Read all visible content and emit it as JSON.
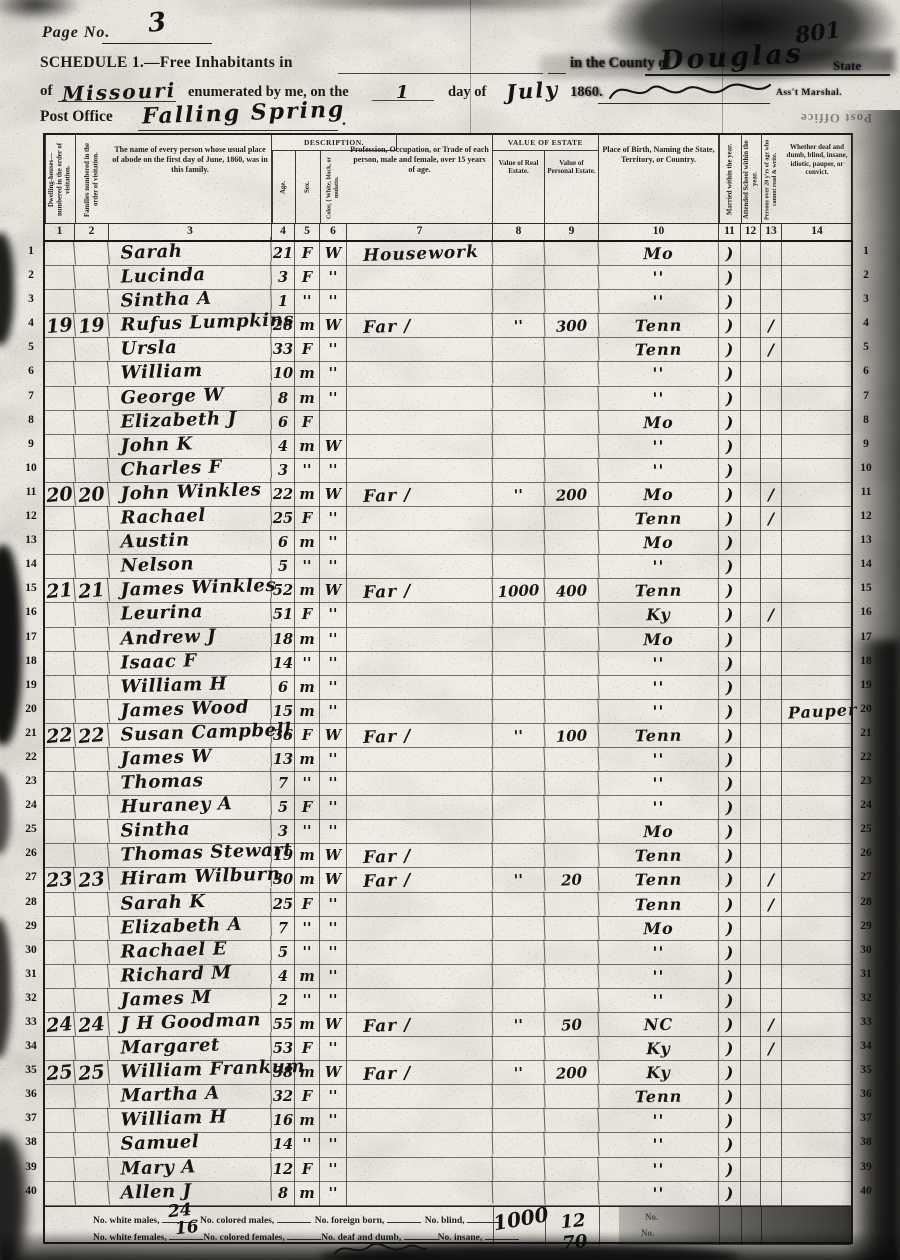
{
  "page": {
    "label": "Page No.",
    "number": "3",
    "corner_number": "801"
  },
  "header": {
    "schedule_title": "SCHEDULE 1.—Free Inhabitants in",
    "county_label": "in the County of",
    "county": "Douglas",
    "state_label": "State",
    "of_word": "of",
    "state": "Missouri",
    "enumerated": "enumerated by me, on the",
    "day": "1",
    "day_of": "day of",
    "month": "July",
    "year": "1860.",
    "marshal": "Ass't Marshal.",
    "post_office_label": "Post Office",
    "post_office": "Falling Spring",
    "period": ".",
    "bleedthrough": "Post Office"
  },
  "table": {
    "line_count": 40,
    "groups": {
      "description": "DESCRIPTION.",
      "estate": "VALUE OF ESTATE OWNED."
    },
    "columns": [
      {
        "no": "1",
        "label": "Dwelling-houses—numbered in the order of visitation."
      },
      {
        "no": "2",
        "label": "Families numbered in the order of visitation."
      },
      {
        "no": "3",
        "label": "The name of every person whose usual place of abode on the first day of June, 1860, was in this family."
      },
      {
        "no": "4",
        "label": "Age."
      },
      {
        "no": "5",
        "label": "Sex."
      },
      {
        "no": "6",
        "label": "Color, { White, black, or mulatto."
      },
      {
        "no": "7",
        "label": "Profession, Occupation, or Trade of each person, male and female, over 15 years of age."
      },
      {
        "no": "8",
        "label": "Value of Real Estate."
      },
      {
        "no": "9",
        "label": "Value of Personal Estate."
      },
      {
        "no": "10",
        "label": "Place of Birth, Naming the State, Territory, or Country."
      },
      {
        "no": "11",
        "label": "Married within the year."
      },
      {
        "no": "12",
        "label": "Attended School within the year."
      },
      {
        "no": "13",
        "label": "Persons over 20 y'rs of age who cannot read & write."
      },
      {
        "no": "14",
        "label": "Whether deaf and dumb, blind, insane, idiotic, pauper, or convict."
      }
    ],
    "rows": [
      [
        "",
        "",
        "Sarah",
        "21",
        "F",
        "W",
        "Housework",
        "",
        "",
        "Mo",
        ")",
        "",
        "",
        ""
      ],
      [
        "",
        "",
        "Lucinda",
        "3",
        "F",
        "''",
        "",
        "",
        "",
        "''",
        ")",
        "",
        "",
        ""
      ],
      [
        "",
        "",
        "Sintha A",
        "1",
        "''",
        "''",
        "",
        "",
        "",
        "''",
        ")",
        "",
        "",
        ""
      ],
      [
        "19",
        "19",
        "Rufus Lumpkins",
        "28",
        "m",
        "W",
        "Far /",
        "''",
        "300",
        "Tenn",
        ")",
        "",
        "/",
        ""
      ],
      [
        "",
        "",
        "Ursla",
        "33",
        "F",
        "''",
        "",
        "",
        "",
        "Tenn",
        ")",
        "",
        "/",
        ""
      ],
      [
        "",
        "",
        "William",
        "10",
        "m",
        "''",
        "",
        "",
        "",
        "''",
        ")",
        "",
        "",
        ""
      ],
      [
        "",
        "",
        "George W",
        "8",
        "m",
        "''",
        "",
        "",
        "",
        "''",
        ")",
        "",
        "",
        ""
      ],
      [
        "",
        "",
        "Elizabeth J",
        "6",
        "F",
        "",
        "",
        "",
        "",
        "Mo",
        ")",
        "",
        "",
        ""
      ],
      [
        "",
        "",
        "John K",
        "4",
        "m",
        "W",
        "",
        "",
        "",
        "''",
        ")",
        "",
        "",
        ""
      ],
      [
        "",
        "",
        "Charles F",
        "3",
        "''",
        "''",
        "",
        "",
        "",
        "''",
        ")",
        "",
        "",
        ""
      ],
      [
        "20",
        "20",
        "John Winkles",
        "22",
        "m",
        "W",
        "Far /",
        "''",
        "200",
        "Mo",
        ")",
        "",
        "/",
        ""
      ],
      [
        "",
        "",
        "Rachael",
        "25",
        "F",
        "''",
        "",
        "",
        "",
        "Tenn",
        ")",
        "",
        "/",
        ""
      ],
      [
        "",
        "",
        "Austin",
        "6",
        "m",
        "''",
        "",
        "",
        "",
        "Mo",
        ")",
        "",
        "",
        ""
      ],
      [
        "",
        "",
        "Nelson",
        "5",
        "''",
        "''",
        "",
        "",
        "",
        "''",
        ")",
        "",
        "",
        ""
      ],
      [
        "21",
        "21",
        "James Winkles",
        "52",
        "m",
        "W",
        "Far /",
        "1000",
        "400",
        "Tenn",
        ")",
        "",
        "",
        ""
      ],
      [
        "",
        "",
        "Leurina",
        "51",
        "F",
        "''",
        "",
        "",
        "",
        "Ky",
        ")",
        "",
        "/",
        ""
      ],
      [
        "",
        "",
        "Andrew J",
        "18",
        "m",
        "''",
        "",
        "",
        "",
        "Mo",
        ")",
        "",
        "",
        ""
      ],
      [
        "",
        "",
        "Isaac F",
        "14",
        "''",
        "''",
        "",
        "",
        "",
        "''",
        ")",
        "",
        "",
        ""
      ],
      [
        "",
        "",
        "William H",
        "6",
        "m",
        "''",
        "",
        "",
        "",
        "''",
        ")",
        "",
        "",
        ""
      ],
      [
        "",
        "",
        "James Wood",
        "15",
        "m",
        "''",
        "",
        "",
        "",
        "''",
        ")",
        "",
        "",
        "Pauper"
      ],
      [
        "22",
        "22",
        "Susan Campbell",
        "36",
        "F",
        "W",
        "Far /",
        "''",
        "100",
        "Tenn",
        ")",
        "",
        "",
        ""
      ],
      [
        "",
        "",
        "James W",
        "13",
        "m",
        "''",
        "",
        "",
        "",
        "''",
        ")",
        "",
        "",
        ""
      ],
      [
        "",
        "",
        "Thomas",
        "7",
        "''",
        "''",
        "",
        "",
        "",
        "''",
        ")",
        "",
        "",
        ""
      ],
      [
        "",
        "",
        "Huraney A",
        "5",
        "F",
        "''",
        "",
        "",
        "",
        "''",
        ")",
        "",
        "",
        ""
      ],
      [
        "",
        "",
        "Sintha",
        "3",
        "''",
        "''",
        "",
        "",
        "",
        "Mo",
        ")",
        "",
        "",
        ""
      ],
      [
        "",
        "",
        "Thomas Stewart",
        "19",
        "m",
        "W",
        "Far /",
        "",
        "",
        "Tenn",
        ")",
        "",
        "",
        ""
      ],
      [
        "23",
        "23",
        "Hiram Wilburn",
        "30",
        "m",
        "W",
        "Far /",
        "''",
        "20",
        "Tenn",
        ")",
        "",
        "/",
        ""
      ],
      [
        "",
        "",
        "Sarah K",
        "25",
        "F",
        "''",
        "",
        "",
        "",
        "Tenn",
        ")",
        "",
        "/",
        ""
      ],
      [
        "",
        "",
        "Elizabeth A",
        "7",
        "''",
        "''",
        "",
        "",
        "",
        "Mo",
        ")",
        "",
        "",
        ""
      ],
      [
        "",
        "",
        "Rachael E",
        "5",
        "''",
        "''",
        "",
        "",
        "",
        "''",
        ")",
        "",
        "",
        ""
      ],
      [
        "",
        "",
        "Richard M",
        "4",
        "m",
        "''",
        "",
        "",
        "",
        "''",
        ")",
        "",
        "",
        ""
      ],
      [
        "",
        "",
        "James M",
        "2",
        "''",
        "''",
        "",
        "",
        "",
        "''",
        ")",
        "",
        "",
        ""
      ],
      [
        "24",
        "24",
        "J H Goodman",
        "55",
        "m",
        "W",
        "Far /",
        "''",
        "50",
        "NC",
        ")",
        "",
        "/",
        ""
      ],
      [
        "",
        "",
        "Margaret",
        "53",
        "F",
        "''",
        "",
        "",
        "",
        "Ky",
        ")",
        "",
        "/",
        ""
      ],
      [
        "25",
        "25",
        "William Frankum",
        "38",
        "m",
        "W",
        "Far /",
        "''",
        "200",
        "Ky",
        ")",
        "",
        "",
        ""
      ],
      [
        "",
        "",
        "Martha A",
        "32",
        "F",
        "''",
        "",
        "",
        "",
        "Tenn",
        ")",
        "",
        "",
        ""
      ],
      [
        "",
        "",
        "William H",
        "16",
        "m",
        "''",
        "",
        "",
        "",
        "''",
        ")",
        "",
        "",
        ""
      ],
      [
        "",
        "",
        "Samuel",
        "14",
        "''",
        "''",
        "",
        "",
        "",
        "''",
        ")",
        "",
        "",
        ""
      ],
      [
        "",
        "",
        "Mary A",
        "12",
        "F",
        "''",
        "",
        "",
        "",
        "''",
        ")",
        "",
        "",
        ""
      ],
      [
        "",
        "",
        "Allen J",
        "8",
        "m",
        "''",
        "",
        "",
        "",
        "''",
        ")",
        "",
        "",
        ""
      ]
    ]
  },
  "footer": {
    "stats": [
      {
        "label": "No. white males,",
        "value": "24"
      },
      {
        "label": "No. colored males,",
        "value": ""
      },
      {
        "label": "No. foreign born,",
        "value": ""
      },
      {
        "label": "No. blind,",
        "value": ""
      },
      {
        "label": "No. white females,",
        "value": "16"
      },
      {
        "label": "No. colored females,",
        "value": ""
      },
      {
        "label": "No. deaf and dumb,",
        "value": ""
      },
      {
        "label": "No. insane,",
        "value": ""
      }
    ],
    "total_real_estate": "1000",
    "total_personal_estate": "12 70",
    "right_fragments": [
      "No.",
      "No."
    ]
  }
}
